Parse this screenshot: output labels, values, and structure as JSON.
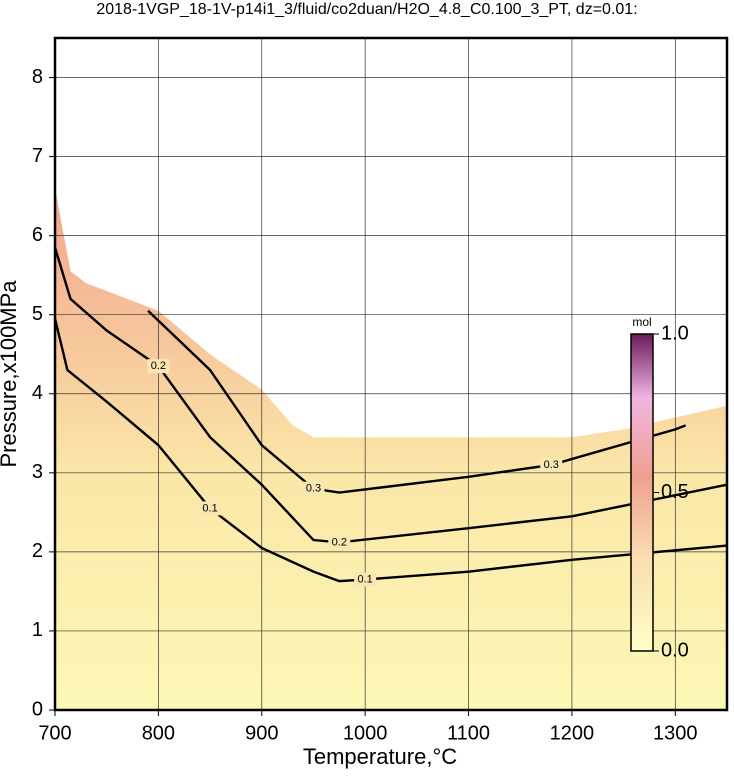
{
  "chart_data": {
    "type": "contour",
    "title": "2018-1VGP_18-1V-p14i1_3/fluid/co2duan/H2O_4.8_C0.100_3_PT, dz=0.01:",
    "x_label": "Temperature,°C",
    "y_label": "Pressure,x100MPa",
    "xlim": [
      700,
      1350
    ],
    "xticks": [
      700,
      800,
      900,
      1000,
      1100,
      1200,
      1300
    ],
    "ylim": [
      0,
      8.5
    ],
    "yticks": [
      0,
      1,
      2,
      3,
      4,
      5,
      6,
      7,
      8
    ],
    "grid": true,
    "boundary": {
      "x": [
        700,
        715,
        730,
        750,
        800,
        850,
        900,
        930,
        950,
        1200,
        1250,
        1300,
        1350
      ],
      "y": [
        6.6,
        5.55,
        5.4,
        5.3,
        5.05,
        4.5,
        4.05,
        3.6,
        3.45,
        3.45,
        3.55,
        3.7,
        3.85
      ]
    },
    "contours": [
      {
        "level": 0.1,
        "x": [
          700,
          712,
          750,
          800,
          850,
          900,
          950,
          975,
          1000,
          1100,
          1200,
          1350
        ],
        "y": [
          4.95,
          4.3,
          3.9,
          3.35,
          2.55,
          2.05,
          1.75,
          1.63,
          1.65,
          1.75,
          1.9,
          2.08
        ]
      },
      {
        "level": 0.2,
        "x": [
          700,
          715,
          750,
          800,
          850,
          900,
          950,
          975,
          1100,
          1200,
          1350
        ],
        "y": [
          5.85,
          5.2,
          4.8,
          4.35,
          3.45,
          2.85,
          2.15,
          2.12,
          2.3,
          2.45,
          2.85
        ]
      },
      {
        "level": 0.3,
        "x": [
          790,
          850,
          900,
          950,
          975,
          1100,
          1180,
          1300,
          1310
        ],
        "y": [
          5.05,
          4.3,
          3.35,
          2.8,
          2.75,
          2.95,
          3.1,
          3.55,
          3.6
        ]
      }
    ],
    "colorbar": {
      "label": "mol",
      "lim": [
        0,
        1
      ],
      "ticks": [
        {
          "value": 0,
          "label": "0.0"
        },
        0.5,
        {
          "value": 1,
          "label": "1.0"
        }
      ]
    }
  }
}
